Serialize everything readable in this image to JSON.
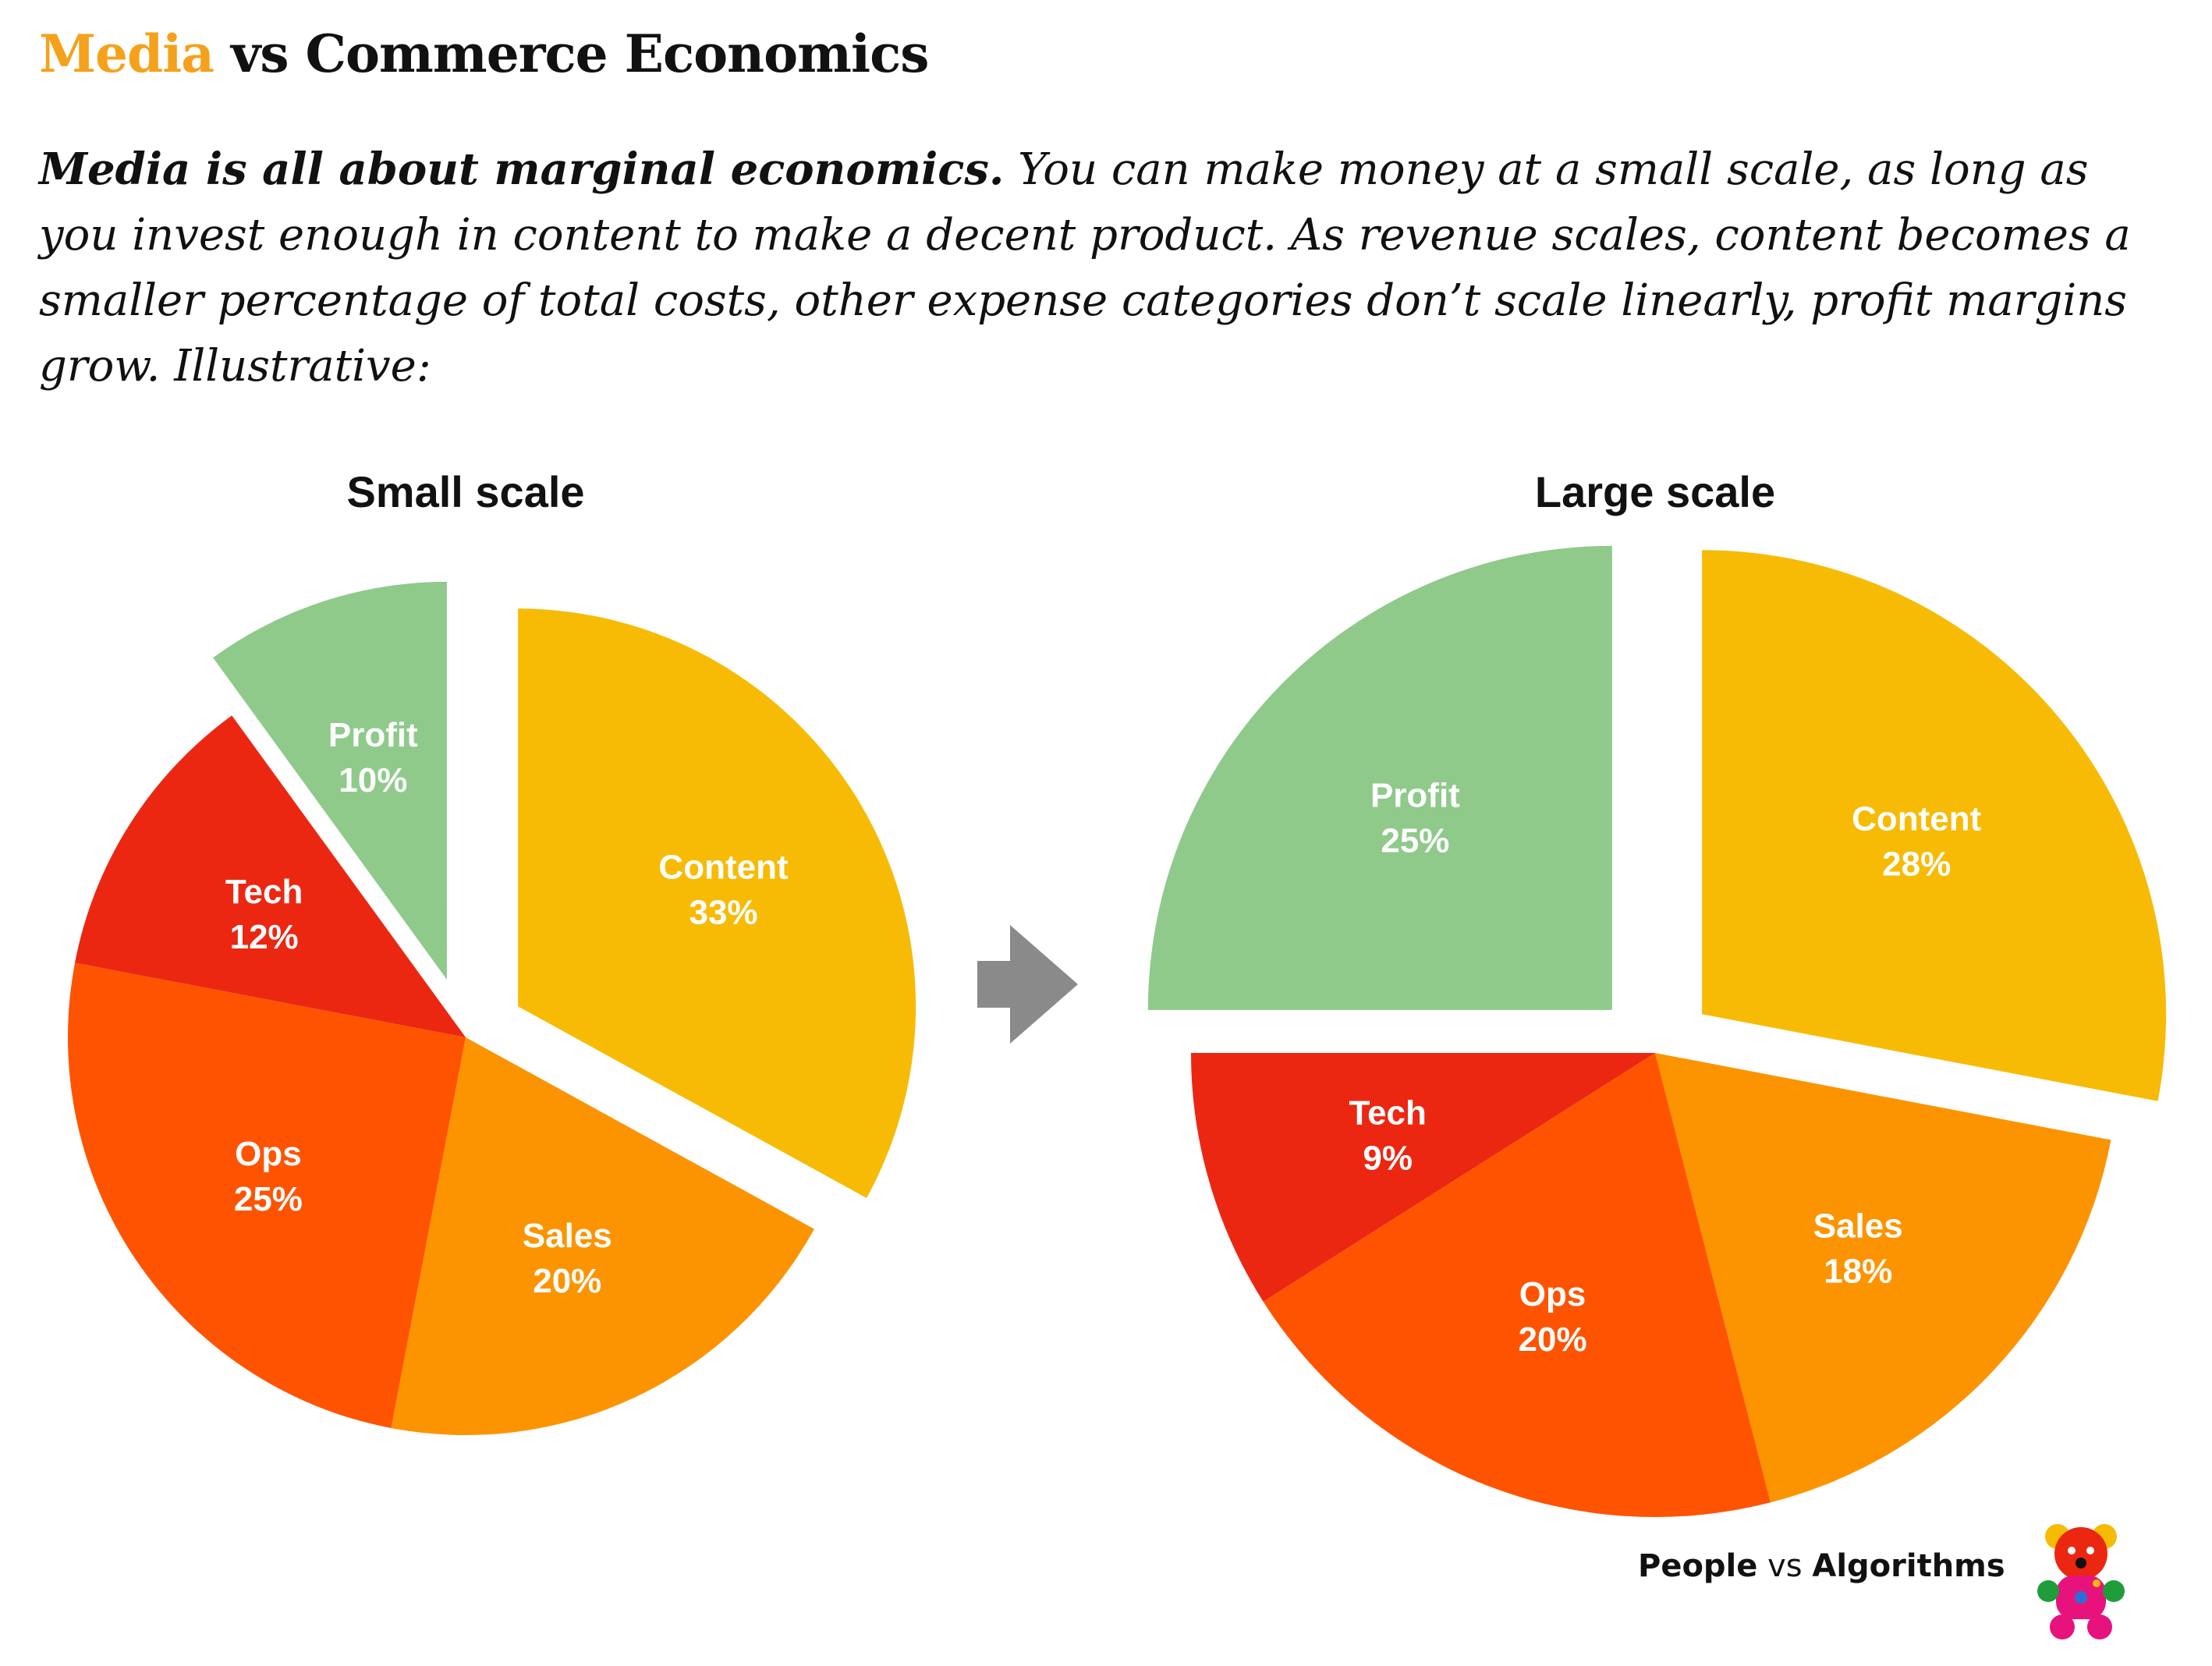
{
  "header": {
    "title_accent": "Media",
    "title_rest": " vs Commerce Economics",
    "subtitle_lead": "Media is all about marginal economics.",
    "subtitle_rest": " You can make money at a small scale, as long as you invest enough in content to make a decent product. As revenue scales, content becomes a smaller percentage of total costs, other expense categories don’t scale linearly, profit margins grow. Illustrative:"
  },
  "colors": {
    "Content": "#f7bb06",
    "Sales": "#fc9402",
    "Ops": "#fe5402",
    "Tech": "#eb2712",
    "Profit": "#8fca8b",
    "arrow": "#8a8a8a",
    "title_accent": "#f5a11c"
  },
  "chart_data": [
    {
      "type": "pie",
      "title": "Small scale",
      "slices": [
        {
          "label": "Content",
          "value": 33,
          "display": "33%",
          "exploded": true
        },
        {
          "label": "Sales",
          "value": 20,
          "display": "20%",
          "exploded": false
        },
        {
          "label": "Ops",
          "value": 25,
          "display": "25%",
          "exploded": false
        },
        {
          "label": "Tech",
          "value": 12,
          "display": "12%",
          "exploded": false
        },
        {
          "label": "Profit",
          "value": 10,
          "display": "10%",
          "exploded": true
        }
      ]
    },
    {
      "type": "pie",
      "title": "Large scale",
      "slices": [
        {
          "label": "Content",
          "value": 28,
          "display": "28%",
          "exploded": true
        },
        {
          "label": "Sales",
          "value": 18,
          "display": "18%",
          "exploded": false
        },
        {
          "label": "Ops",
          "value": 20,
          "display": "20%",
          "exploded": false
        },
        {
          "label": "Tech",
          "value": 9,
          "display": "9%",
          "exploded": false
        },
        {
          "label": "Profit",
          "value": 25,
          "display": "25%",
          "exploded": true
        }
      ]
    }
  ],
  "footer": {
    "brand_people": "People",
    "brand_vs": " vs ",
    "brand_algorithms": "Algorithms",
    "logo_icon": "teddy-bear-logo-icon"
  }
}
